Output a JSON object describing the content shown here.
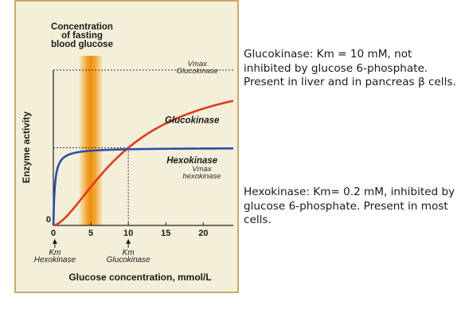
{
  "chart_data": {
    "type": "line",
    "title": "Concentration\nof fasting\nblood glucose",
    "xlabel": "Glucose concentration, mmol/L",
    "ylabel": "Enzyme activity",
    "xlim": [
      0,
      24
    ],
    "ylim": [
      0,
      1.0
    ],
    "x_ticks": [
      "0",
      "5",
      "10",
      "15",
      "20"
    ],
    "x_tick_values": [
      0,
      5,
      10,
      15,
      20
    ],
    "y_origin_label": "0",
    "fasting_band_x": 5,
    "km_markers": [
      {
        "x": 0.2,
        "label": "Km\nHexokinase"
      },
      {
        "x": 10,
        "label": "Km\nGlucokinase"
      }
    ],
    "series": [
      {
        "name": "Glucokinase",
        "color": "#e03a1e",
        "vmax": 1.0,
        "km": 10,
        "hill": 1.6,
        "vmax_label": "Vmax\nGlucokinase"
      },
      {
        "name": "Hexokinase",
        "color": "#2a4fa8",
        "vmax": 0.5,
        "km": 0.2,
        "hill": 1.0,
        "vmax_label": "Vmax\nhexokinase"
      }
    ],
    "grid": false,
    "background": "#f4efd9",
    "border_color": "#c9a86a"
  },
  "notes": {
    "glucokinase": "Glucokinase: Km = 10 mM, not inhibited by glucose 6-phosphate.  Present in liver and in pancreas β cells.",
    "hexokinase": "Hexokinase:  Km= 0.2 mM, inhibited by glucose 6-phosphate.  Present in most cells."
  }
}
